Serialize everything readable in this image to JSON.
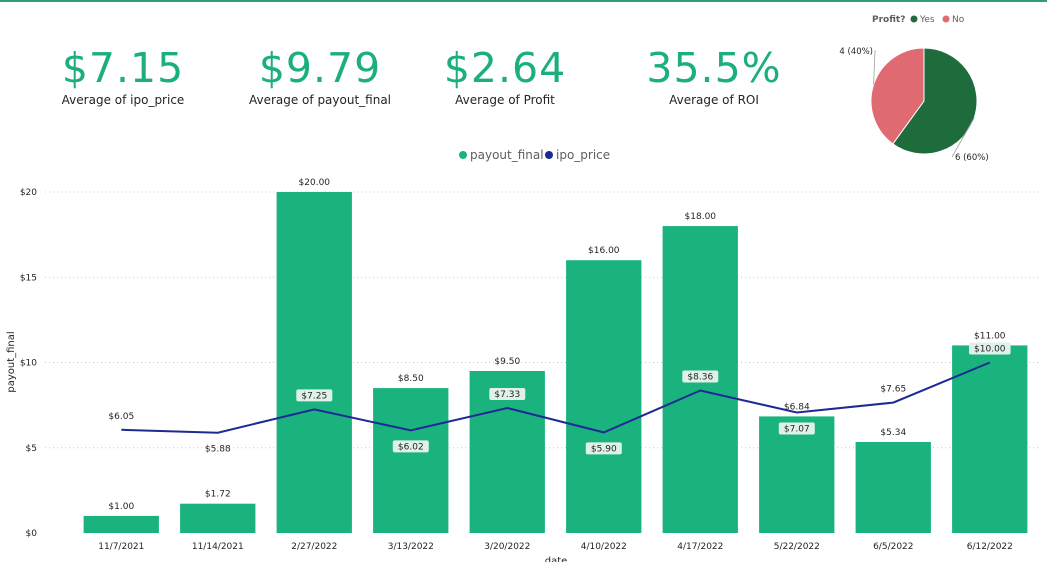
{
  "kpis": [
    {
      "value": "$7.15",
      "label": "Average of ipo_price"
    },
    {
      "value": "$9.79",
      "label": "Average of payout_final"
    },
    {
      "value": "$2.64",
      "label": "Average of Profit"
    },
    {
      "value": "35.5%",
      "label": "Average of ROI"
    }
  ],
  "colors": {
    "accent": "#1aaf7b",
    "bar": "#1ab37e",
    "line": "#1c2a94",
    "pie_yes": "#1e6b3c",
    "pie_no": "#e06a72",
    "label_box": "#dff1e8"
  },
  "chart_data": [
    {
      "type": "pie",
      "legend_title": "Profit?",
      "labels": [
        "Yes",
        "No"
      ],
      "values": [
        6,
        4
      ],
      "data_labels": [
        "6 (60%)",
        "4 (40%)"
      ]
    },
    {
      "type": "bar",
      "x": [
        "11/7/2021",
        "11/14/2021",
        "2/27/2022",
        "3/13/2022",
        "3/20/2022",
        "4/10/2022",
        "4/17/2022",
        "5/22/2022",
        "6/5/2022",
        "6/12/2022"
      ],
      "xlabel": "date",
      "ylabel": "payout_final",
      "ylim": [
        0,
        20
      ],
      "yticks": [
        "$0",
        "$5",
        "$10",
        "$15",
        "$20"
      ],
      "grid": true,
      "legend": "top",
      "series": [
        {
          "name": "payout_final",
          "type": "bar",
          "values": [
            1.0,
            1.72,
            20.0,
            8.5,
            9.5,
            16.0,
            18.0,
            6.84,
            5.34,
            11.0
          ],
          "labels": [
            "$1.00",
            "$1.72",
            "$20.00",
            "$8.50",
            "$9.50",
            "$16.00",
            "$18.00",
            "$6.84",
            "$5.34",
            "$11.00"
          ]
        },
        {
          "name": "ipo_price",
          "type": "line",
          "values": [
            6.05,
            5.88,
            7.25,
            6.02,
            7.33,
            5.9,
            8.36,
            7.07,
            7.65,
            10.0
          ],
          "labels": [
            "$6.05",
            "$5.88",
            "$7.25",
            "$6.02",
            "$7.33",
            "$5.90",
            "$8.36",
            "$7.07",
            "$7.65",
            "$10.00"
          ],
          "label_boxed": [
            false,
            false,
            true,
            true,
            true,
            true,
            true,
            true,
            false,
            true
          ]
        }
      ]
    }
  ]
}
